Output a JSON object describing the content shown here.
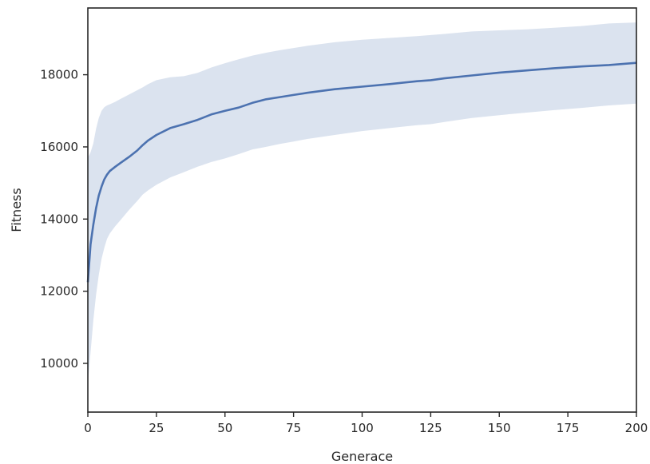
{
  "chart_data": {
    "type": "line",
    "title": "",
    "xlabel": "Generace",
    "ylabel": "Fitness",
    "xlim": [
      0,
      200
    ],
    "ylim": [
      8650,
      19850
    ],
    "xticks": [
      0,
      25,
      50,
      75,
      100,
      125,
      150,
      175,
      200
    ],
    "xtick_labels": [
      "0",
      "25",
      "50",
      "75",
      "100",
      "125",
      "150",
      "175",
      "200"
    ],
    "yticks": [
      10000,
      12000,
      14000,
      16000,
      18000
    ],
    "ytick_labels": [
      "10000",
      "12000",
      "14000",
      "16000",
      "18000"
    ],
    "grid": false,
    "legend": null,
    "colors": {
      "line": "#4c72b0",
      "band": "#dbe3ef",
      "axis": "#262626"
    },
    "series": [
      {
        "x": [
          0,
          1,
          2,
          3,
          4,
          5,
          6,
          7,
          8,
          10,
          12,
          15,
          18,
          20,
          22,
          25,
          30,
          35,
          40,
          45,
          50,
          55,
          60,
          65,
          70,
          75,
          80,
          90,
          100,
          110,
          120,
          125,
          130,
          140,
          150,
          160,
          170,
          180,
          190,
          200
        ],
        "mean": [
          12250,
          13300,
          13850,
          14300,
          14650,
          14900,
          15100,
          15230,
          15330,
          15450,
          15560,
          15720,
          15900,
          16050,
          16180,
          16330,
          16520,
          16630,
          16750,
          16900,
          17000,
          17090,
          17220,
          17320,
          17380,
          17440,
          17500,
          17600,
          17670,
          17740,
          17820,
          17850,
          17900,
          17980,
          18060,
          18120,
          18180,
          18230,
          18270,
          18330
        ],
        "upper": [
          15700,
          15850,
          16100,
          16500,
          16800,
          17000,
          17100,
          17150,
          17180,
          17250,
          17330,
          17450,
          17570,
          17650,
          17740,
          17850,
          17930,
          17960,
          18050,
          18200,
          18320,
          18430,
          18530,
          18610,
          18680,
          18740,
          18800,
          18900,
          18970,
          19020,
          19070,
          19100,
          19130,
          19200,
          19230,
          19260,
          19300,
          19350,
          19420,
          19450
        ],
        "lower": [
          9450,
          10300,
          11200,
          11900,
          12450,
          12900,
          13200,
          13450,
          13600,
          13800,
          13980,
          14250,
          14500,
          14680,
          14800,
          14950,
          15150,
          15300,
          15450,
          15580,
          15680,
          15800,
          15930,
          16000,
          16080,
          16150,
          16220,
          16330,
          16440,
          16520,
          16600,
          16630,
          16690,
          16800,
          16880,
          16950,
          17020,
          17080,
          17150,
          17200
        ]
      }
    ]
  }
}
